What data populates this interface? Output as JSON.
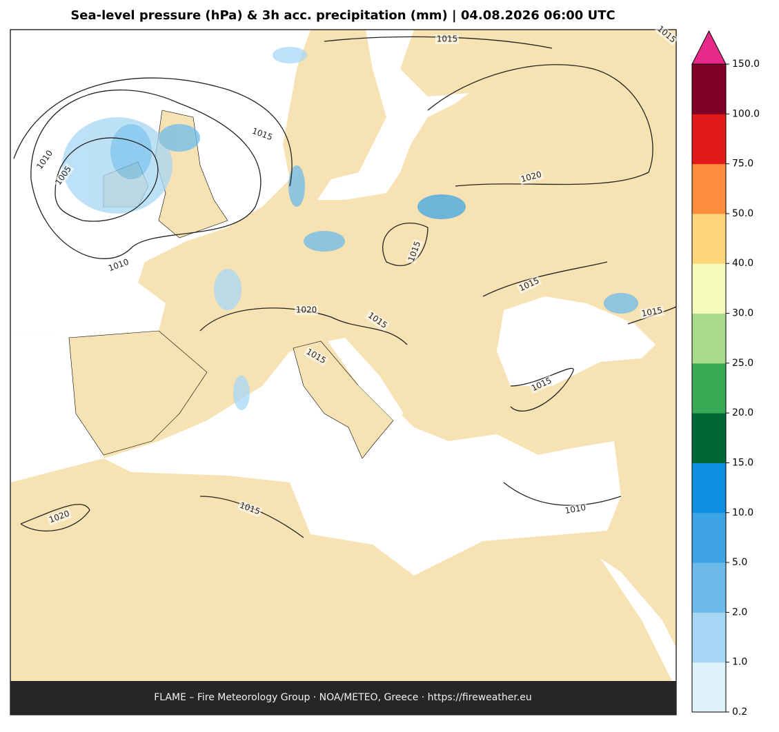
{
  "title": "Sea-level pressure (hPa) & 3h acc. precipitation (mm)  |  04.08.2026 06:00 UTC",
  "footer": "FLAME – Fire Meteorology Group · NOA/METEO, Greece · https://fireweather.eu",
  "colorbar": {
    "ticks": [
      0.2,
      {
        "value": 1,
        "label": "1.0"
      },
      {
        "value": 2,
        "label": "2.0"
      },
      {
        "value": 5,
        "label": "5.0"
      },
      {
        "value": 10,
        "label": "10.0"
      },
      {
        "value": 15,
        "label": "15.0"
      },
      {
        "value": 20,
        "label": "20.0"
      },
      {
        "value": 25,
        "label": "25.0"
      },
      {
        "value": 30,
        "label": "30.0"
      },
      {
        "value": 40,
        "label": "40.0"
      },
      {
        "value": 50,
        "label": "50.0"
      },
      {
        "value": 75,
        "label": "75.0"
      },
      {
        "value": 100,
        "label": "100.0"
      },
      {
        "value": 150,
        "label": "150.0"
      }
    ],
    "colors": [
      "#dff1fd",
      "#a6d7f5",
      "#6cbbeb",
      "#3fa4e6",
      "#0f8fe0",
      "#006837",
      "#3aa956",
      "#aadb8c",
      "#f6fbbb",
      "#fed679",
      "#fd8d3c",
      "#e31a1c",
      "#800026"
    ],
    "extend_color": "#e7298a"
  },
  "isobar_labels": [
    "1015",
    "1015",
    "1010",
    "1005",
    "1020",
    "1015",
    "1010",
    "1015",
    "1020",
    "1015",
    "1015",
    "1015",
    "1015",
    "1020",
    "1015",
    "1010",
    "1015"
  ]
}
